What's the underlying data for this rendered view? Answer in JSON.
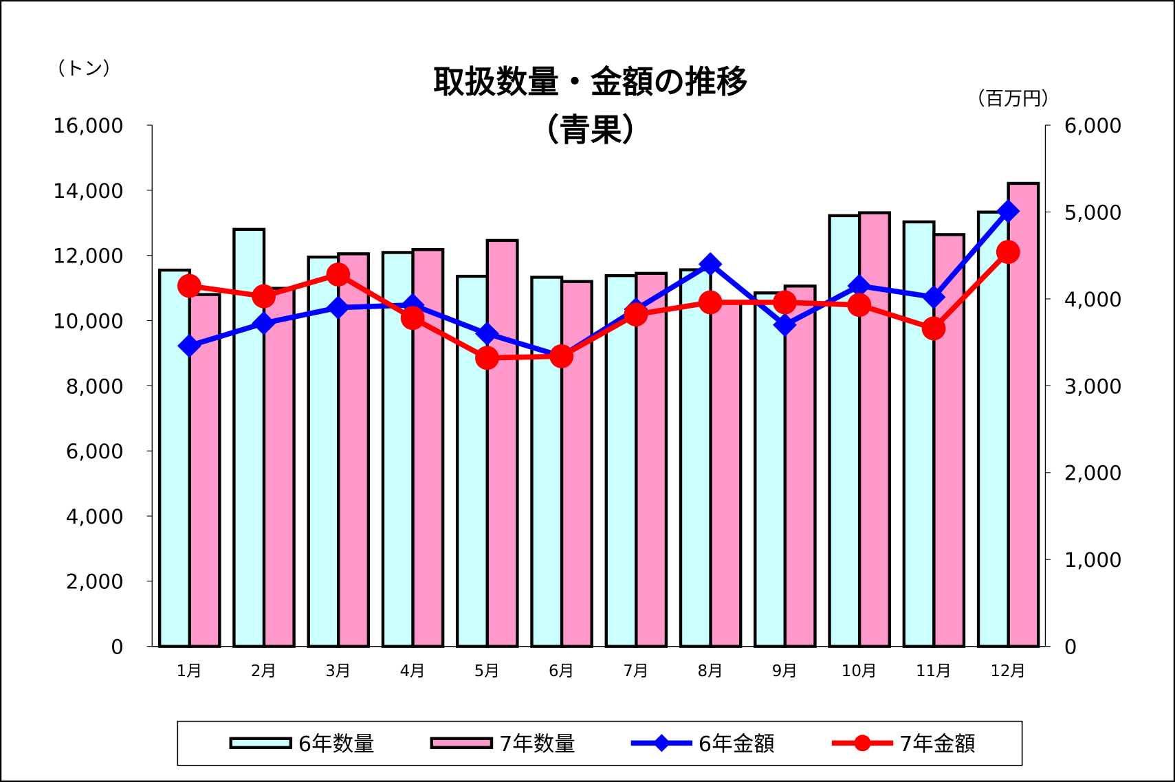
{
  "chart_data": {
    "type": "bar+line",
    "title": "取扱数量・金額の推移",
    "subtitle": "（青果）",
    "ylabel_left": "（トン）",
    "ylabel_right": "（百万円）",
    "categories": [
      "1月",
      "2月",
      "3月",
      "4月",
      "5月",
      "6月",
      "7月",
      "8月",
      "9月",
      "10月",
      "11月",
      "12月"
    ],
    "ylim_left": [
      0,
      16000
    ],
    "ylim_right": [
      0,
      6000
    ],
    "yticks_left": [
      "0",
      "2,000",
      "4,000",
      "6,000",
      "8,000",
      "10,000",
      "12,000",
      "14,000",
      "16,000"
    ],
    "yticks_right": [
      "0",
      "1,000",
      "2,000",
      "3,000",
      "4,000",
      "5,000",
      "6,000"
    ],
    "grid": false,
    "legend_position": "bottom",
    "series": [
      {
        "name": "6年数量",
        "type": "bar",
        "axis": "left",
        "color": "#CCFFFF",
        "values": [
          11550,
          12800,
          11950,
          12090,
          11360,
          11330,
          11380,
          11560,
          10850,
          13220,
          13030,
          13330
        ]
      },
      {
        "name": "7年数量",
        "type": "bar",
        "axis": "left",
        "color": "#FF99CC",
        "values": [
          10800,
          10990,
          12050,
          12180,
          12460,
          11200,
          11450,
          10530,
          11060,
          13310,
          12640,
          14210
        ]
      },
      {
        "name": "6年金額",
        "type": "line",
        "axis": "right",
        "color": "#0000FF",
        "marker": "diamond",
        "values": [
          3460,
          3720,
          3900,
          3930,
          3600,
          3340,
          3880,
          4400,
          3700,
          4150,
          4020,
          5010
        ]
      },
      {
        "name": "7年金額",
        "type": "line",
        "axis": "right",
        "color": "#FF0000",
        "marker": "circle",
        "values": [
          4150,
          4030,
          4280,
          3780,
          3320,
          3340,
          3820,
          3960,
          3960,
          3930,
          3660,
          4540
        ]
      }
    ]
  }
}
